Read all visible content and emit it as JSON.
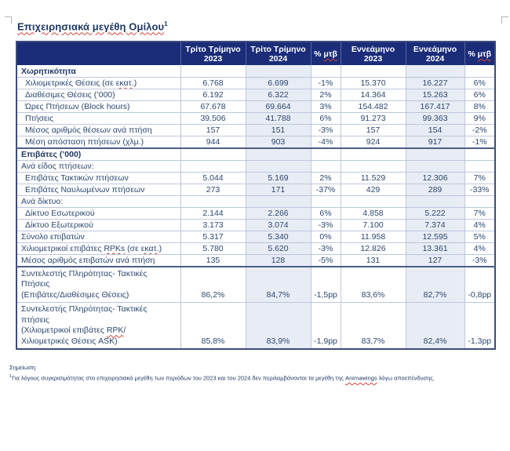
{
  "title": {
    "text": "Επιχειρησιακά μεγέθη Ομίλου",
    "superscript": "1"
  },
  "table": {
    "columns": [
      "",
      "Τρίτο Τρίμηνο 2023",
      "Τρίτο Τρίμηνο 2024",
      "% μτβ",
      "Εννεάμηνο 2023",
      "Εννεάμηνο 2024",
      "% μτβ"
    ],
    "rows": [
      {
        "kind": "section",
        "label": "Χωρητικότητα",
        "indent": false,
        "values": [
          "",
          "",
          "",
          "",
          "",
          ""
        ]
      },
      {
        "kind": "data",
        "label": "Χιλιομετρικές Θέσεις (σε εκατ.)",
        "indent": true,
        "values": [
          "6.768",
          "6.699",
          "-1%",
          "15.370",
          "16.227",
          "6%"
        ]
      },
      {
        "kind": "data",
        "label": "Διαθέσιμες Θέσεις (’000)",
        "indent": true,
        "values": [
          "6.192",
          "6.322",
          "2%",
          "14.364",
          "15.263",
          "6%"
        ]
      },
      {
        "kind": "data",
        "label": "Ώρες Πτήσεων (Block hours)",
        "indent": true,
        "values": [
          "67.678",
          "69.664",
          "3%",
          "154.482",
          "167.417",
          "8%"
        ]
      },
      {
        "kind": "data",
        "label": "Πτήσεις",
        "indent": true,
        "values": [
          "39.506",
          "41.788",
          "6%",
          "91.273",
          "99.363",
          "9%"
        ]
      },
      {
        "kind": "data",
        "label": "Μέσος αριθμός θέσεων ανά πτήση",
        "indent": true,
        "values": [
          "157",
          "151",
          "-3%",
          "157",
          "154",
          "-2%"
        ]
      },
      {
        "kind": "data",
        "label": "Μέση απόσταση πτήσεων (χλμ.)",
        "indent": true,
        "values": [
          "944",
          "903",
          "-4%",
          "924",
          "917",
          "-1%"
        ]
      },
      {
        "kind": "section",
        "label": "Επιβάτες (’000)",
        "indent": false,
        "thick_top": true,
        "values": [
          "",
          "",
          "",
          "",
          "",
          ""
        ]
      },
      {
        "kind": "subsection",
        "label": "Ανά είδος πτήσεων:",
        "indent": false,
        "values": [
          "",
          "",
          "",
          "",
          "",
          ""
        ]
      },
      {
        "kind": "data",
        "label": "Επιβάτες Τακτικών πτήσεων",
        "indent": true,
        "values": [
          "5.044",
          "5.169",
          "2%",
          "11.529",
          "12.306",
          "7%"
        ]
      },
      {
        "kind": "data",
        "label": "Επιβάτες Ναυλωμένων πτήσεων",
        "indent": true,
        "values": [
          "273",
          "171",
          "-37%",
          "429",
          "289",
          "-33%"
        ]
      },
      {
        "kind": "subsection",
        "label": "Ανά δίκτυο:",
        "indent": false,
        "values": [
          "",
          "",
          "",
          "",
          "",
          ""
        ]
      },
      {
        "kind": "data",
        "label": "Δίκτυο Εσωτερικού",
        "indent": true,
        "values": [
          "2.144",
          "2.266",
          "6%",
          "4.858",
          "5.222",
          "7%"
        ]
      },
      {
        "kind": "data",
        "label": "Δίκτυο Εξωτερικού",
        "indent": true,
        "values": [
          "3.173",
          "3.074",
          "-3%",
          "7.100",
          "7.374",
          "4%"
        ]
      },
      {
        "kind": "data",
        "label": "Σύνολο επιβατών",
        "indent": false,
        "values": [
          "5.317",
          "5.340",
          "0%",
          "11.958",
          "12.595",
          "5%"
        ]
      },
      {
        "kind": "data",
        "label": "Χιλιομετρικοί επιβάτες RPKs (σε εκατ.)",
        "indent": false,
        "values": [
          "5.780",
          "5.620",
          "-3%",
          "12.826",
          "13.361",
          "4%"
        ]
      },
      {
        "kind": "data",
        "label": "Μέσος αριθμός επιβατών ανά πτήση",
        "indent": false,
        "values": [
          "135",
          "128",
          "-5%",
          "131",
          "127",
          "-3%"
        ]
      },
      {
        "kind": "multiline",
        "lines": [
          "Συντελεστής Πληρότητας- Τακτικές",
          "Πτήσεις",
          "(Επιβάτες/Διαθέσιμες Θέσεις)"
        ],
        "indent": false,
        "thick_top": true,
        "values": [
          "86,2%",
          "84,7%",
          "-1,5pp",
          "83,6%",
          "82,7%",
          "-0,8pp"
        ]
      },
      {
        "kind": "multiline",
        "lines": [
          "Συντελεστής Πληρότητας- Τακτικές",
          "πτήσεις",
          "(Χιλιομετρικοί επιβάτες RPK/",
          "Χιλιομετρικές Θέσεις ASK)"
        ],
        "indent": false,
        "values": [
          "85,8%",
          "83,9%",
          "-1,9pp",
          "83,7%",
          "82,4%",
          "-1,3pp"
        ]
      }
    ]
  },
  "footnote": {
    "label": "Σημείωση:",
    "superscript": "1",
    "text": "Για λόγους συγκρισιμότητας στα επιχειρησιακά μεγέθη των περιόδων του 2023 και του 2024 δεν περιλαμβάνονται τα μεγέθη της Animawings λόγω αποεπένδυσης."
  },
  "misspelled": [
    "Επιχειρησιακά μεγέθη Ομίλου",
    "Animawings",
    "RPKs",
    "RPK",
    "εκατ.",
    "μτβ"
  ],
  "colors": {
    "header_bg": "#1B2D79",
    "body_text": "#2C4770",
    "title_text": "#1F3864",
    "shaded_column": "#E8ECF4",
    "grid_line": "#bcc7de",
    "section_divider": "#4d5d85",
    "spellcheck_red": "#d04437"
  }
}
